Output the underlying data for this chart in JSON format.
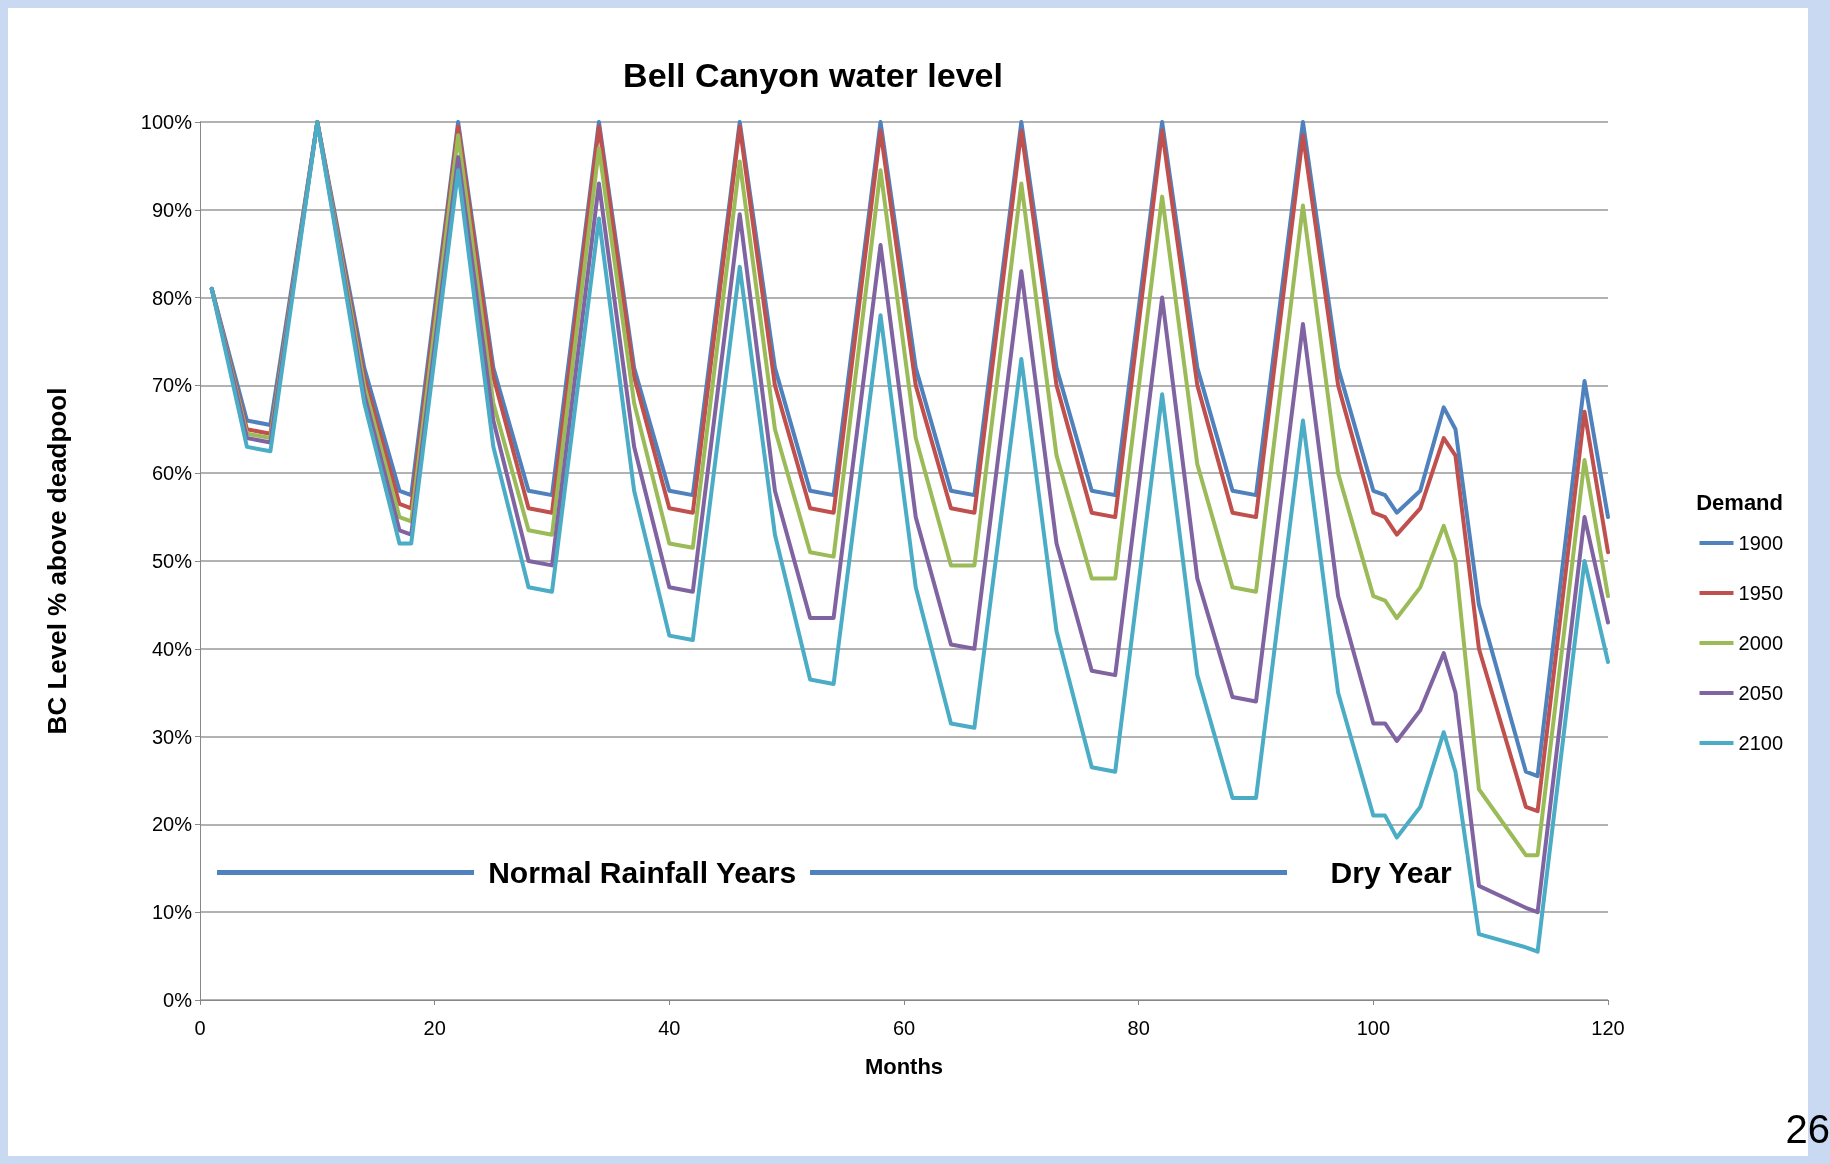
{
  "chart_data": {
    "type": "line",
    "title": "Bell Canyon water level",
    "xlabel": "Months",
    "ylabel": "BC Level % above deadpool",
    "legend_title": "Demand",
    "legend": "right",
    "grid": "y",
    "marker": "none",
    "line_style": "solid",
    "x": [
      1,
      4,
      6,
      10,
      14,
      17,
      18,
      22,
      25,
      28,
      30,
      34,
      37,
      40,
      42,
      46,
      49,
      52,
      54,
      58,
      61,
      64,
      66,
      70,
      73,
      76,
      78,
      82,
      85,
      88,
      90,
      94,
      97,
      100,
      101,
      102,
      104,
      106,
      107,
      109,
      113,
      114,
      118,
      120
    ],
    "xlim": [
      0,
      120
    ],
    "xticks": [
      0,
      20,
      40,
      60,
      80,
      100,
      120
    ],
    "ylim": [
      0,
      100
    ],
    "yticks": [
      {
        "value": 0,
        "label": "0%"
      },
      {
        "value": 10,
        "label": "10%"
      },
      {
        "value": 20,
        "label": "20%"
      },
      {
        "value": 30,
        "label": "30%"
      },
      {
        "value": 40,
        "label": "40%"
      },
      {
        "value": 50,
        "label": "50%"
      },
      {
        "value": 60,
        "label": "60%"
      },
      {
        "value": 70,
        "label": "70%"
      },
      {
        "value": 80,
        "label": "80%"
      },
      {
        "value": 90,
        "label": "90%"
      },
      {
        "value": 100,
        "label": "100%"
      }
    ],
    "series": [
      {
        "name": "1900",
        "color": "#4f81bd",
        "values": [
          81,
          66,
          65.5,
          100,
          72,
          58,
          57.5,
          100,
          72,
          58,
          57.5,
          100,
          72,
          58,
          57.5,
          100,
          72,
          58,
          57.5,
          100,
          72,
          58,
          57.5,
          100,
          72,
          58,
          57.5,
          100,
          72,
          58,
          57.5,
          100,
          72,
          58,
          57.5,
          55.5,
          58,
          67.5,
          65,
          45,
          26,
          25.5,
          70.5,
          55
        ]
      },
      {
        "name": "1950",
        "color": "#c0504d",
        "values": [
          81,
          65,
          64.5,
          100,
          71,
          56.5,
          56,
          99.5,
          71,
          56,
          55.5,
          99.5,
          71,
          56,
          55.5,
          99.5,
          70,
          56,
          55.5,
          99,
          70,
          56,
          55.5,
          99,
          70,
          55.5,
          55,
          99,
          70,
          55.5,
          55,
          98.5,
          70,
          55.5,
          55,
          53,
          56,
          64,
          62,
          40,
          22,
          21.5,
          67,
          51
        ]
      },
      {
        "name": "2000",
        "color": "#9bbb59",
        "values": [
          81,
          64.5,
          64,
          100,
          70,
          55,
          54.5,
          98.5,
          68,
          53.5,
          53,
          97,
          68,
          52,
          51.5,
          95.5,
          65,
          51,
          50.5,
          94.5,
          64,
          49.5,
          49.5,
          93,
          62,
          48,
          48,
          91.5,
          61,
          47,
          46.5,
          90.5,
          60,
          46,
          45.5,
          43.5,
          47,
          54,
          50,
          24,
          16.5,
          16.5,
          61.5,
          46
        ]
      },
      {
        "name": "2050",
        "color": "#8064a2",
        "values": [
          81,
          64,
          63.5,
          100,
          69,
          53.5,
          53,
          96,
          66,
          50,
          49.5,
          93,
          63,
          47,
          46.5,
          89.5,
          58,
          43.5,
          43.5,
          86,
          55,
          40.5,
          40,
          83,
          52,
          37.5,
          37,
          80,
          48,
          34.5,
          34,
          77,
          46,
          31.5,
          31.5,
          29.5,
          33,
          39.5,
          35,
          13,
          10.5,
          10,
          55,
          43
        ]
      },
      {
        "name": "2100",
        "color": "#4bacc6",
        "values": [
          81,
          63,
          62.5,
          100,
          68,
          52,
          52,
          94.5,
          63,
          47,
          46.5,
          89,
          58,
          41.5,
          41,
          83.5,
          53,
          36.5,
          36,
          78,
          47,
          31.5,
          31,
          73,
          42,
          26.5,
          26,
          69,
          37,
          23,
          23,
          66,
          35,
          21,
          21,
          18.5,
          22,
          30.5,
          26,
          7.5,
          6,
          5.5,
          50,
          38.5
        ]
      }
    ],
    "annotations": [
      "Normal Rainfall Years",
      "Dry Year",
      "26"
    ]
  }
}
